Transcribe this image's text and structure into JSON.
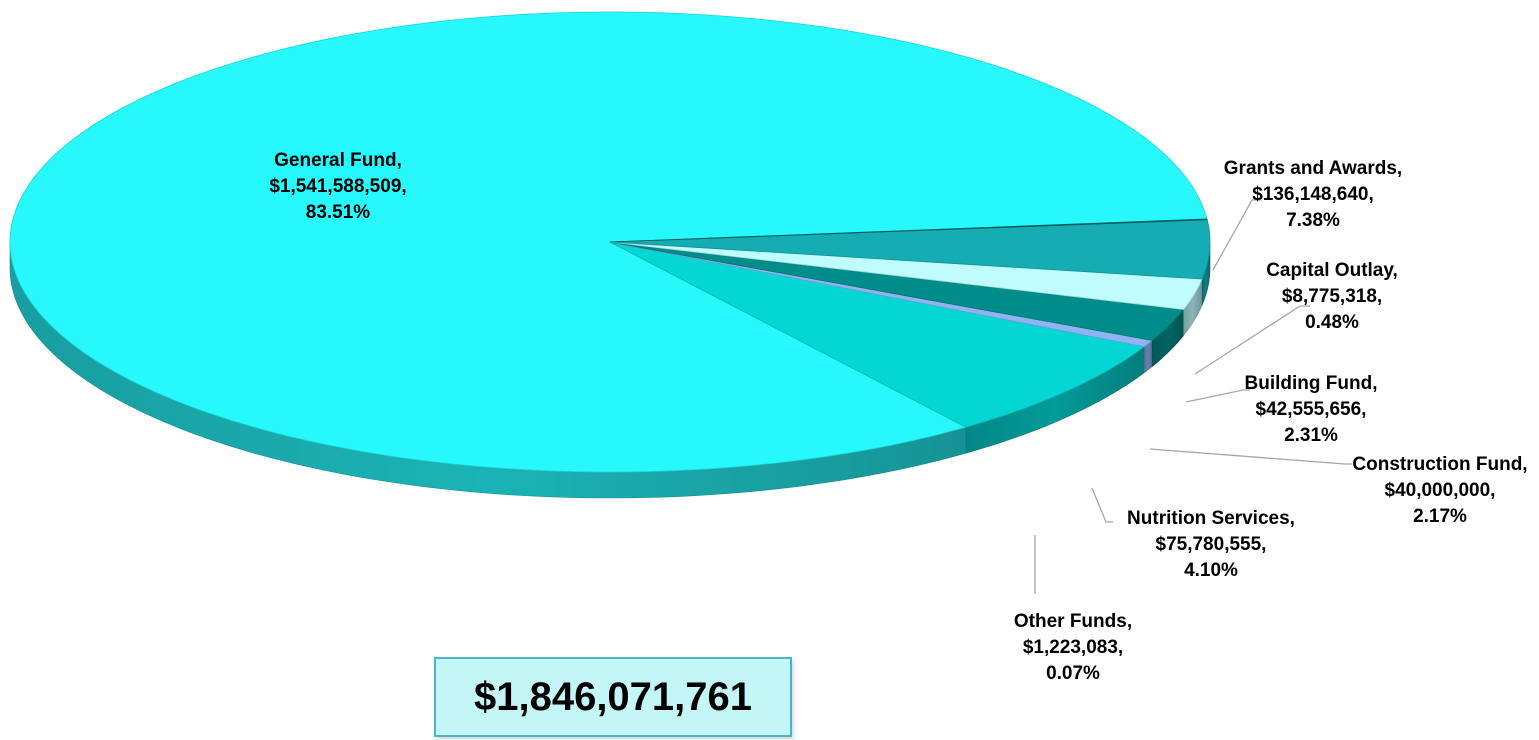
{
  "chart_data": {
    "type": "pie",
    "title": "",
    "total": "$1,846,071,761",
    "slices": [
      {
        "name": "General Fund",
        "value": 1541588509,
        "value_label": "$1,541,588,509,",
        "percent": 83.51,
        "percent_label": "83.51%",
        "color": "#26f8fb"
      },
      {
        "name": "Grants and Awards",
        "value": 136148640,
        "value_label": "$136,148,640,",
        "percent": 7.38,
        "percent_label": "7.38%",
        "color": "#04d6d4"
      },
      {
        "name": "Capital Outlay",
        "value": 8775318,
        "value_label": "$8,775,318,",
        "percent": 0.48,
        "percent_label": "0.48%",
        "color": "#8fb4f4"
      },
      {
        "name": "Building Fund",
        "value": 42555656,
        "value_label": "$42,555,656,",
        "percent": 2.31,
        "percent_label": "2.31%",
        "color": "#008c88"
      },
      {
        "name": "Construction Fund",
        "value": 40000000,
        "value_label": "$40,000,000,",
        "percent": 2.17,
        "percent_label": "2.17%",
        "color": "#c0fbfd"
      },
      {
        "name": "Nutrition Services",
        "value": 75780555,
        "value_label": "$75,780,555,",
        "percent": 4.1,
        "percent_label": "4.10%",
        "color": "#15acb4"
      },
      {
        "name": "Other Funds",
        "value": 1223083,
        "value_label": "$1,223,083,",
        "percent": 0.07,
        "percent_label": "0.07%",
        "color": "#0a6e6c"
      }
    ]
  }
}
